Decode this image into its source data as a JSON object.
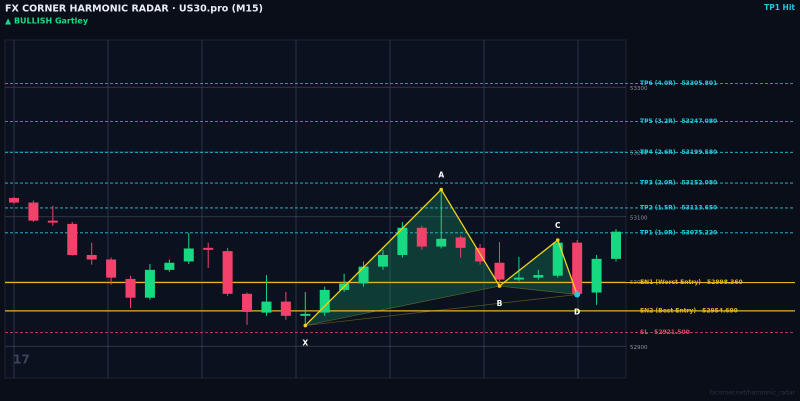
{
  "chart_data": {
    "type": "candlestick",
    "title": "FX CORNER HARMONIC RADAR  ·  US30.pro (M15)",
    "subtitle": "▲ BULLISH  Gartley",
    "status": "TP1 Hit",
    "watermark": "17",
    "footer": "fxcorner.net/harmonic_radar",
    "ylim": [
      52851,
      53373
    ],
    "yticks": [
      52900,
      53000,
      53100,
      53200,
      53300
    ],
    "grid": true,
    "up_color": "#16d982",
    "down_color": "#f2416b",
    "open": [
      53129,
      53122,
      53094,
      53089,
      53041,
      53034,
      53004,
      52975,
      53018,
      53031,
      53052,
      53047,
      52981,
      52952,
      52969,
      52947,
      52952,
      52987,
      52997,
      53023,
      53041,
      53083,
      53054,
      53068,
      53052,
      53029,
      53003,
      53006,
      53009,
      53060,
      52983,
      53035
    ],
    "high": [
      53131,
      53125,
      53117,
      53092,
      53060,
      53037,
      53009,
      53027,
      53034,
      53075,
      53060,
      53052,
      52983,
      53010,
      52984,
      52984,
      52992,
      53012,
      53031,
      53049,
      53092,
      53086,
      53142,
      53071,
      53058,
      53061,
      53038,
      53018,
      53064,
      53064,
      53041,
      53081
    ],
    "low": [
      53120,
      53092,
      53086,
      53040,
      53026,
      52995,
      52959,
      52972,
      53015,
      53027,
      53021,
      52978,
      52933,
      52947,
      52941,
      52932,
      52947,
      52984,
      52992,
      53018,
      53037,
      53049,
      53051,
      53037,
      53026,
      52993,
      53000,
      53003,
      53006,
      52978,
      52964,
      53031
    ],
    "close": [
      53122,
      53094,
      53091,
      53041,
      53034,
      53006,
      52975,
      53018,
      53029,
      53051,
      53049,
      52981,
      52953,
      52969,
      52947,
      52950,
      52987,
      52997,
      53023,
      53041,
      53083,
      53054,
      53066,
      53052,
      53031,
      53003,
      53006,
      53010,
      53060,
      52981,
      53035,
      53077
    ],
    "pattern": {
      "color": "#f2d21b",
      "fill": "#14a86a",
      "points": [
        {
          "label": "X",
          "index": 15,
          "value": 52932
        },
        {
          "label": "A",
          "index": 22,
          "value": 53142
        },
        {
          "label": "B",
          "index": 25,
          "value": 52993
        },
        {
          "label": "C",
          "index": 28,
          "value": 53064
        },
        {
          "label": "D",
          "index": 29,
          "value": 52980
        }
      ]
    },
    "levels": [
      {
        "name": "TP6 (4.0R)",
        "value": 53305.801,
        "value_label": "53305.801",
        "color": "#22c8dc",
        "dashed": true
      },
      {
        "name": "TP5 (3.2R)",
        "value": 53247.08,
        "value_label": "53247.080",
        "color": "#22c8dc",
        "dashed": true
      },
      {
        "name": "TP4 (2.6R)",
        "value": 53199.58,
        "value_label": "53199.580",
        "color": "#22c8dc",
        "dashed": true
      },
      {
        "name": "TP3 (2.0R)",
        "value": 53152.08,
        "value_label": "53152.080",
        "color": "#22c8dc",
        "dashed": true
      },
      {
        "name": "TP2 (1.5R)",
        "value": 53113.65,
        "value_label": "53113.650",
        "color": "#22c8dc",
        "dashed": true
      },
      {
        "name": "TP1 (1.0R)",
        "value": 53075.22,
        "value_label": "53075.220",
        "color": "#22c8dc",
        "dashed": true
      },
      {
        "name": "EN1 (Worst Entry)",
        "value": 52998.36,
        "value_label": "52998.360",
        "color": "#e6b422",
        "dashed": false
      },
      {
        "name": "EN2 (Best Entry)",
        "value": 52954.69,
        "value_label": "52954.690",
        "color": "#e6b422",
        "dashed": false
      },
      {
        "name": "SL",
        "value": 52921.5,
        "value_label": "52921.500",
        "color": "#e8456a",
        "dashed": true
      }
    ]
  }
}
